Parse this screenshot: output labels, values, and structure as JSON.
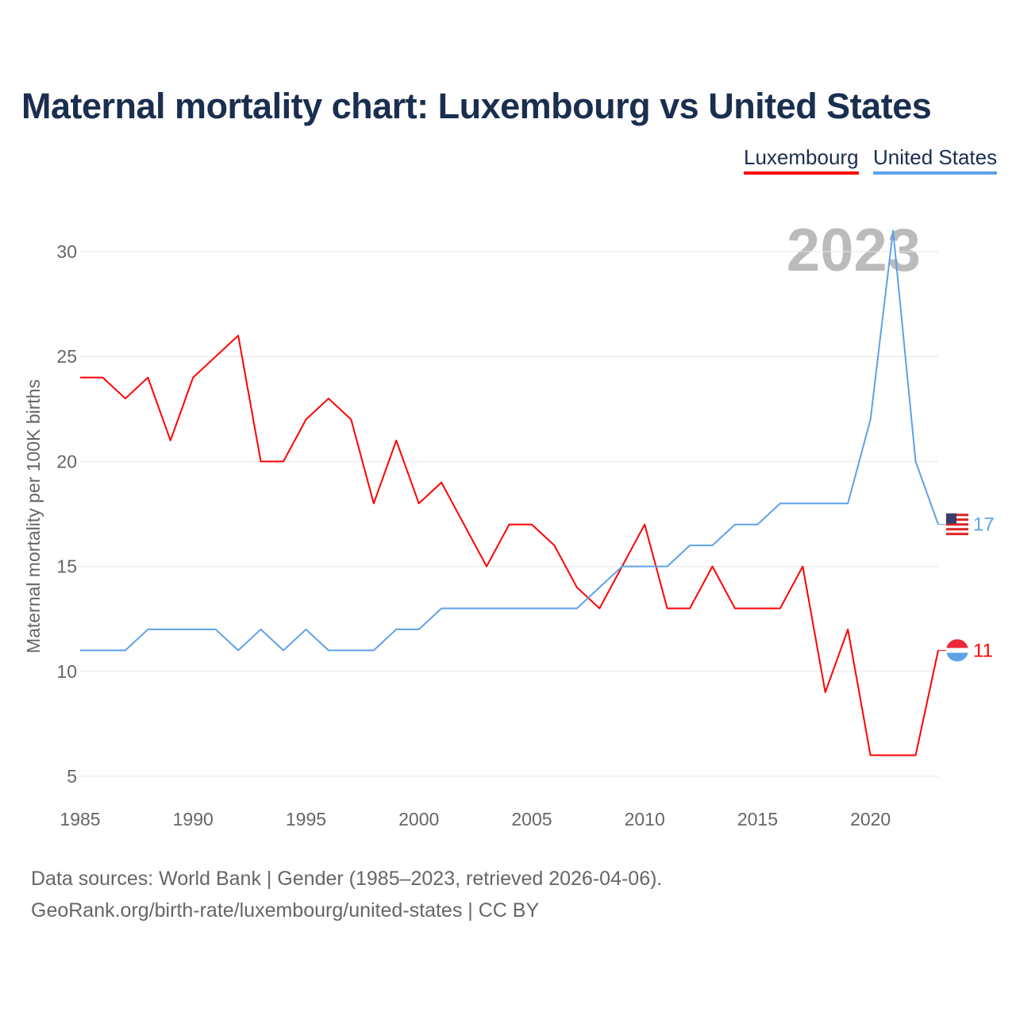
{
  "chart_data": {
    "type": "line",
    "title": "Maternal mortality chart: Luxembourg vs United States",
    "xlabel": "",
    "ylabel": "Maternal mortality per 100K births",
    "xlim": [
      1985,
      2023
    ],
    "ylim": [
      5,
      30
    ],
    "x_ticks": [
      1985,
      1990,
      1995,
      2000,
      2005,
      2010,
      2015,
      2020
    ],
    "y_ticks": [
      5,
      10,
      15,
      20,
      25,
      30
    ],
    "grid": true,
    "legend_position": "top-right",
    "year_label": "2023",
    "x": [
      1985,
      1986,
      1987,
      1988,
      1989,
      1990,
      1991,
      1992,
      1993,
      1994,
      1995,
      1996,
      1997,
      1998,
      1999,
      2000,
      2001,
      2002,
      2003,
      2004,
      2005,
      2006,
      2007,
      2008,
      2009,
      2010,
      2011,
      2012,
      2013,
      2014,
      2015,
      2016,
      2017,
      2018,
      2019,
      2020,
      2021,
      2022,
      2023
    ],
    "series": [
      {
        "name": "Luxembourg",
        "color": "#ff0000",
        "end_label": "11",
        "values": [
          24,
          24,
          23,
          24,
          21,
          24,
          25,
          26,
          20,
          20,
          22,
          23,
          22,
          18,
          21,
          18,
          19,
          17,
          15,
          17,
          17,
          16,
          14,
          13,
          15,
          17,
          13,
          13,
          15,
          13,
          13,
          13,
          15,
          9,
          12,
          6,
          6,
          6,
          11
        ]
      },
      {
        "name": "United States",
        "color": "#5ea2e8",
        "end_label": "17",
        "values": [
          11,
          11,
          11,
          12,
          12,
          12,
          12,
          11,
          12,
          11,
          12,
          11,
          11,
          11,
          12,
          12,
          13,
          13,
          13,
          13,
          13,
          13,
          13,
          14,
          15,
          15,
          15,
          16,
          16,
          17,
          17,
          18,
          18,
          18,
          18,
          22,
          31,
          20,
          17
        ]
      }
    ]
  },
  "source": {
    "line1": "Data sources: World Bank | Gender (1985–2023, retrieved 2026-04-06).",
    "line2": "GeoRank.org/birth-rate/luxembourg/united-states | CC BY"
  }
}
